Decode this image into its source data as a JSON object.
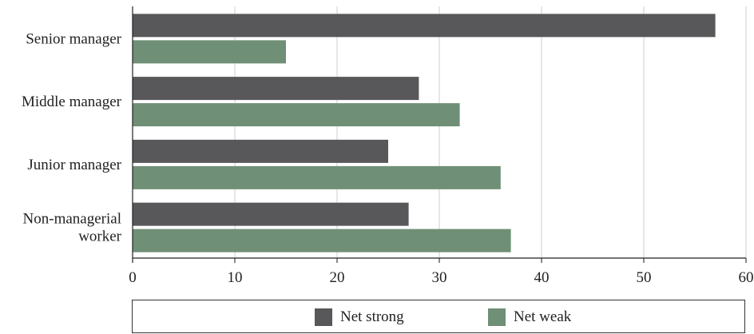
{
  "chart_data": {
    "type": "bar",
    "orientation": "horizontal",
    "categories": [
      "Senior manager",
      "Middle manager",
      "Junior manager",
      "Non-managerial worker"
    ],
    "category_lines": [
      [
        "Senior manager"
      ],
      [
        "Middle manager"
      ],
      [
        "Junior manager"
      ],
      [
        "Non-managerial",
        "worker"
      ]
    ],
    "series": [
      {
        "name": "Net strong",
        "values": [
          57,
          28,
          25,
          27
        ],
        "color": "#58585a"
      },
      {
        "name": "Net weak",
        "values": [
          15,
          32,
          36,
          37
        ],
        "color": "#6f8f76"
      }
    ],
    "x_ticks": [
      "0",
      "10",
      "20",
      "30",
      "40",
      "50",
      "60"
    ],
    "xlim": [
      0,
      60
    ],
    "grid": true,
    "legend_position": "bottom",
    "title": "",
    "xlabel": "",
    "ylabel": ""
  }
}
